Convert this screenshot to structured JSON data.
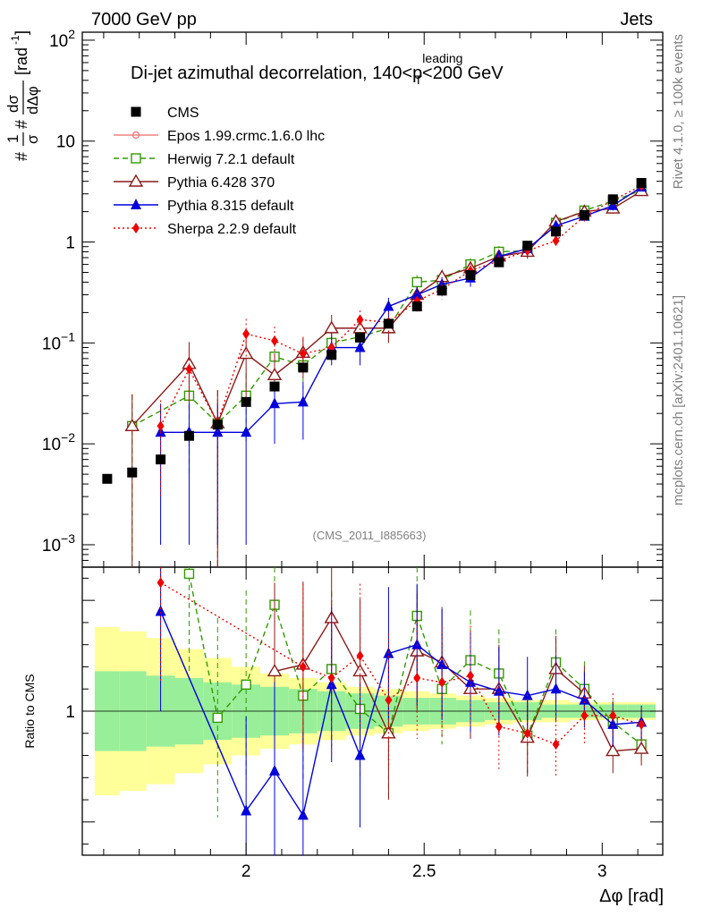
{
  "header": {
    "left_label": "7000 GeV pp",
    "right_label": "Jets",
    "side_label_top": "Rivet 4.1.0, ≥ 100k events",
    "side_label_bottom": "mcplots.cern.ch [arXiv:2401.10621]",
    "analysis_id": "(CMS_2011_I885663)"
  },
  "chart_data": {
    "type": "scatter",
    "title": "Di-jet azimuthal decorrelation, 140<p_T^leading<200 GeV",
    "title_parts": {
      "main": "Di-jet azimuthal decorrelation, 140<p",
      "sup": "leading",
      "sub": "T",
      "tail": "<200 GeV"
    },
    "xlabel": "Δφ [rad]",
    "ylabel": "#1/σ #dσ/dΔφ [rad⁻¹]",
    "ylabel_parts": {
      "hash1": "#",
      "frac1_num": "1",
      "frac1_den": "σ",
      "hash2": "#",
      "frac2_num": "dσ",
      "frac2_den": "dΔφ",
      "unit": "[rad",
      "unit_sup": "-1",
      "unit_close": "]"
    },
    "ratio_ylabel": "Ratio to CMS",
    "xlim": [
      1.54,
      3.17
    ],
    "ylim": [
      0.0006,
      120
    ],
    "yscale": "log",
    "x_ticks": [
      {
        "value": 2.0,
        "label": "2"
      },
      {
        "value": 2.5,
        "label": "2.5"
      },
      {
        "value": 3.0,
        "label": "3"
      }
    ],
    "y_ticks": [
      {
        "value": 0.001,
        "base": "10",
        "exp": "−3"
      },
      {
        "value": 0.01,
        "base": "10",
        "exp": "−2"
      },
      {
        "value": 0.1,
        "base": "10",
        "exp": "−1"
      },
      {
        "value": 1,
        "base": "1",
        "exp": ""
      },
      {
        "value": 10,
        "base": "10",
        "exp": ""
      },
      {
        "value": 100,
        "base": "10",
        "exp": "2"
      }
    ],
    "ratio_ylim": [
      0.35,
      1.65
    ],
    "ratio_ticks": [
      {
        "value": 1.0,
        "label": "1"
      }
    ],
    "bins": [
      1.61,
      1.68,
      1.76,
      1.84,
      1.92,
      2.0,
      2.08,
      2.16,
      2.24,
      2.32,
      2.4,
      2.48,
      2.55,
      2.63,
      2.71,
      2.79,
      2.87,
      2.95,
      3.03,
      3.11
    ],
    "cms": {
      "name": "CMS",
      "values": [
        0.0045,
        0.0052,
        0.007,
        0.012,
        0.0155,
        0.026,
        0.037,
        0.057,
        0.076,
        0.113,
        0.155,
        0.23,
        0.33,
        0.47,
        0.63,
        0.92,
        1.27,
        1.85,
        2.65,
        3.85
      ],
      "band_inner": [
        0.18,
        0.18,
        0.16,
        0.15,
        0.13,
        0.12,
        0.11,
        0.1,
        0.09,
        0.08,
        0.07,
        0.06,
        0.06,
        0.05,
        0.04,
        0.04,
        0.03,
        0.03,
        0.03,
        0.03
      ],
      "band_outer": [
        0.38,
        0.36,
        0.33,
        0.28,
        0.24,
        0.2,
        0.17,
        0.15,
        0.13,
        0.11,
        0.1,
        0.09,
        0.08,
        0.07,
        0.06,
        0.05,
        0.05,
        0.04,
        0.04,
        0.04
      ]
    },
    "series": [
      {
        "name": "Epos 1.99.crmc.1.6.0 lhc",
        "color": "#f08080",
        "dash": "",
        "marker": "star",
        "values": [
          null,
          null,
          null,
          null,
          null,
          null,
          null,
          null,
          null,
          null,
          null,
          null,
          null,
          null,
          null,
          null,
          null,
          null,
          null,
          null
        ],
        "ratios": [
          null,
          null,
          null,
          null,
          null,
          null,
          null,
          null,
          null,
          null,
          null,
          null,
          null,
          null,
          null,
          null,
          null,
          null,
          null,
          null
        ]
      },
      {
        "name": "Herwig 7.2.1 default",
        "color": "#339900",
        "dash": "6,4",
        "marker": "open-square",
        "values": [
          null,
          0.015,
          null,
          0.03,
          0.016,
          0.03,
          0.073,
          0.06,
          0.1,
          0.115,
          0.14,
          0.4,
          0.42,
          0.6,
          0.8,
          0.82,
          1.55,
          2.05,
          2.55,
          3.25
        ],
        "ratios": [
          null,
          null,
          null,
          1.62,
          0.97,
          1.12,
          1.48,
          1.07,
          1.19,
          1.01,
          0.9,
          1.43,
          1.1,
          1.23,
          1.17,
          0.89,
          1.22,
          1.1,
          0.95,
          0.85
        ],
        "errs": [
          null,
          0.016,
          null,
          0.025,
          0.018,
          0.02,
          0.03,
          0.025,
          0.03,
          0.03,
          0.035,
          0.07,
          0.07,
          0.09,
          0.11,
          0.12,
          0.15,
          0.2,
          0.25,
          0.3
        ]
      },
      {
        "name": "Pythia 6.428 370",
        "color": "#8b1a1a",
        "dash": "",
        "marker": "open-triangle",
        "values": [
          null,
          0.015,
          null,
          0.062,
          0.016,
          0.078,
          0.048,
          0.08,
          0.14,
          0.14,
          0.14,
          0.3,
          0.45,
          0.55,
          0.72,
          0.8,
          1.6,
          2.0,
          2.15,
          3.2
        ],
        "ratios": [
          null,
          null,
          null,
          null,
          null,
          null,
          1.18,
          1.21,
          1.42,
          1.18,
          0.9,
          1.27,
          1.22,
          1.1,
          1.1,
          0.88,
          1.19,
          1.08,
          0.82,
          0.83
        ],
        "errs": [
          null,
          0.016,
          null,
          0.04,
          0.018,
          0.05,
          0.03,
          0.035,
          0.05,
          0.04,
          0.04,
          0.06,
          0.08,
          0.09,
          0.1,
          0.12,
          0.15,
          0.2,
          0.25,
          0.3
        ]
      },
      {
        "name": "Pythia 8.315 default",
        "color": "#0000dd",
        "dash": "",
        "marker": "filled-triangle",
        "values": [
          null,
          null,
          0.013,
          0.013,
          0.013,
          0.013,
          0.025,
          0.026,
          0.09,
          0.09,
          0.23,
          0.3,
          0.38,
          0.44,
          0.72,
          0.86,
          1.45,
          1.8,
          2.3,
          3.5
        ],
        "ratios": [
          null,
          null,
          1.45,
          null,
          null,
          0.55,
          0.73,
          0.53,
          1.12,
          0.8,
          1.26,
          1.3,
          1.21,
          1.13,
          1.09,
          1.07,
          1.1,
          1.05,
          0.94,
          0.95
        ],
        "errs": [
          null,
          null,
          0.012,
          0.012,
          0.012,
          0.012,
          0.015,
          0.015,
          0.03,
          0.03,
          0.05,
          0.06,
          0.07,
          0.08,
          0.1,
          0.12,
          0.15,
          0.2,
          0.25,
          0.3
        ]
      },
      {
        "name": "Sherpa 2.2.9 default",
        "color": "#ee0000",
        "dash": "2,3",
        "marker": "filled-diamond",
        "values": [
          null,
          null,
          0.015,
          0.055,
          0.016,
          0.123,
          0.105,
          0.078,
          0.09,
          0.17,
          0.16,
          0.26,
          0.34,
          0.52,
          0.65,
          0.82,
          1.03,
          1.8,
          2.6,
          3.6
        ],
        "ratios": [
          null,
          null,
          1.58,
          null,
          null,
          null,
          null,
          1.2,
          1.15,
          1.25,
          1.05,
          1.15,
          1.13,
          1.16,
          0.93,
          0.9,
          0.85,
          0.98,
          0.98,
          0.94
        ],
        "errs": [
          null,
          null,
          0.012,
          0.03,
          0.018,
          0.05,
          0.04,
          0.03,
          0.03,
          0.04,
          0.04,
          0.06,
          0.07,
          0.08,
          0.1,
          0.12,
          0.15,
          0.2,
          0.25,
          0.3
        ]
      }
    ]
  }
}
